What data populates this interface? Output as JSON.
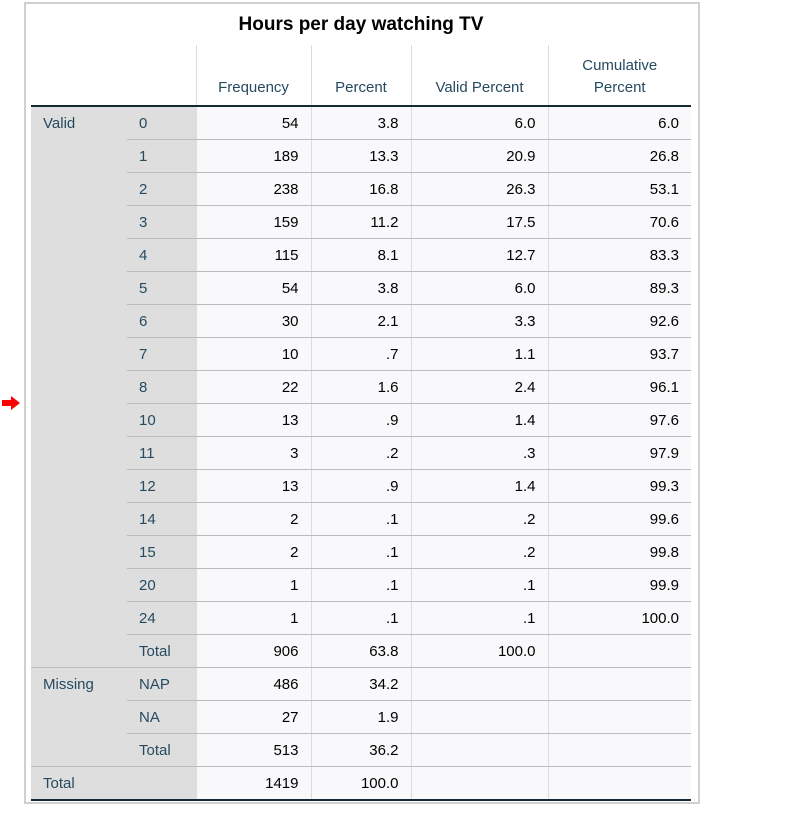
{
  "title": "Hours per day watching TV",
  "columns": [
    "Frequency",
    "Percent",
    "Valid Percent",
    "Cumulative Percent"
  ],
  "groups": [
    {
      "label": "Valid",
      "rows": [
        [
          "0",
          "54",
          "3.8",
          "6.0",
          "6.0"
        ],
        [
          "1",
          "189",
          "13.3",
          "20.9",
          "26.8"
        ],
        [
          "2",
          "238",
          "16.8",
          "26.3",
          "53.1"
        ],
        [
          "3",
          "159",
          "11.2",
          "17.5",
          "70.6"
        ],
        [
          "4",
          "115",
          "8.1",
          "12.7",
          "83.3"
        ],
        [
          "5",
          "54",
          "3.8",
          "6.0",
          "89.3"
        ],
        [
          "6",
          "30",
          "2.1",
          "3.3",
          "92.6"
        ],
        [
          "7",
          "10",
          ".7",
          "1.1",
          "93.7"
        ],
        [
          "8",
          "22",
          "1.6",
          "2.4",
          "96.1"
        ],
        [
          "10",
          "13",
          ".9",
          "1.4",
          "97.6"
        ],
        [
          "11",
          "3",
          ".2",
          ".3",
          "97.9"
        ],
        [
          "12",
          "13",
          ".9",
          "1.4",
          "99.3"
        ],
        [
          "14",
          "2",
          ".1",
          ".2",
          "99.6"
        ],
        [
          "15",
          "2",
          ".1",
          ".2",
          "99.8"
        ],
        [
          "20",
          "1",
          ".1",
          ".1",
          "99.9"
        ],
        [
          "24",
          "1",
          ".1",
          ".1",
          "100.0"
        ],
        [
          "Total",
          "906",
          "63.8",
          "100.0",
          ""
        ]
      ]
    },
    {
      "label": "Missing",
      "rows": [
        [
          "NAP",
          "486",
          "34.2",
          "",
          ""
        ],
        [
          "NA",
          "27",
          "1.9",
          "",
          ""
        ],
        [
          "Total",
          "513",
          "36.2",
          "",
          ""
        ]
      ]
    }
  ],
  "total": [
    "Total",
    "1419",
    "100.0",
    "",
    ""
  ],
  "marker": {
    "icon": "red-arrow-icon",
    "color": "#ff0000"
  }
}
